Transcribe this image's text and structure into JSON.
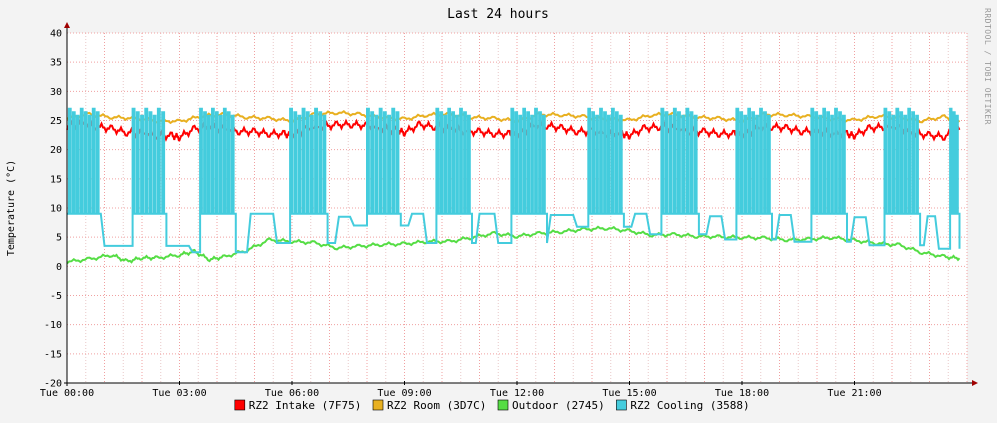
{
  "chart_data": {
    "type": "line",
    "title": "Last 24 hours",
    "ylabel": "Temperature (°C)",
    "watermark": "RRDTOOL / TOBI OETIKER",
    "ylim": [
      -20,
      40
    ],
    "xlim_hours": [
      0,
      24
    ],
    "yticks": [
      40,
      35,
      30,
      25,
      20,
      15,
      10,
      5,
      0,
      -5,
      -10,
      -15,
      -20
    ],
    "xticks": [
      {
        "h": 0,
        "label": "Tue 00:00"
      },
      {
        "h": 3,
        "label": "Tue 03:00"
      },
      {
        "h": 6,
        "label": "Tue 06:00"
      },
      {
        "h": 9,
        "label": "Tue 09:00"
      },
      {
        "h": 12,
        "label": "Tue 12:00"
      },
      {
        "h": 15,
        "label": "Tue 15:00"
      },
      {
        "h": 18,
        "label": "Tue 18:00"
      },
      {
        "h": 21,
        "label": "Tue 21:00"
      }
    ],
    "grid": true,
    "legend_position": "bottom",
    "series": [
      {
        "name": "RZ2 Intake (7F75)",
        "color": "#ff0000",
        "x": [
          0,
          0.4,
          0.8,
          1.2,
          1.6,
          2.0,
          2.4,
          2.8,
          3.0,
          3.4,
          3.8,
          4.2,
          4.6,
          5.0,
          5.4,
          5.8,
          6.0,
          6.4,
          6.8,
          7.2,
          7.6,
          8.0,
          8.4,
          8.8,
          9.0,
          9.4,
          9.8,
          10.2,
          10.6,
          11.0,
          11.4,
          11.8,
          12.0,
          12.4,
          12.8,
          13.2,
          13.6,
          14.0,
          14.4,
          14.8,
          15.0,
          15.4,
          15.8,
          16.2,
          16.6,
          17.0,
          17.4,
          17.8,
          18.0,
          18.4,
          18.8,
          19.2,
          19.6,
          20.0,
          20.4,
          20.8,
          21.0,
          21.4,
          21.8,
          22.2,
          22.6,
          23.0,
          23.4,
          23.8
        ],
        "y": [
          24,
          24.5,
          24,
          23.5,
          23,
          22.8,
          22.5,
          22.3,
          22.2,
          23.5,
          24,
          23.5,
          23.2,
          23,
          22.8,
          22.6,
          22.5,
          23.5,
          24,
          24.2,
          24.4,
          24,
          23.6,
          23.3,
          23,
          24.2,
          24,
          23.6,
          23.2,
          23,
          22.8,
          22.6,
          22.5,
          24,
          24.2,
          23.6,
          23.2,
          23,
          22.8,
          22.6,
          22.5,
          23.6,
          24,
          23.6,
          23.2,
          23,
          22.8,
          22.6,
          22.5,
          23.6,
          24,
          23.6,
          23.2,
          23,
          22.8,
          22.6,
          22.5,
          23.6,
          24,
          23.6,
          22.8,
          22.4,
          22.3,
          23.4
        ]
      },
      {
        "name": "RZ2 Room (3D7C)",
        "color": "#e8b020",
        "x": [
          0,
          0.6,
          1.2,
          1.8,
          2.4,
          3.0,
          3.6,
          4.2,
          4.8,
          5.4,
          6.0,
          6.6,
          7.2,
          7.8,
          8.4,
          9.0,
          9.6,
          10.2,
          10.8,
          11.4,
          12.0,
          12.6,
          13.2,
          13.8,
          14.4,
          15.0,
          15.6,
          16.2,
          16.8,
          17.4,
          18.0,
          18.6,
          19.2,
          19.8,
          20.4,
          21.0,
          21.6,
          22.2,
          22.8,
          23.4,
          23.8
        ],
        "y": [
          25.5,
          26,
          25.6,
          25.3,
          25,
          24.8,
          25.8,
          26,
          25.6,
          25.3,
          25,
          26,
          26.4,
          26,
          25.6,
          25.2,
          26,
          26,
          25.6,
          25.3,
          25,
          26,
          26,
          25.6,
          25.3,
          25,
          26,
          26,
          25.6,
          25.3,
          25,
          26,
          26,
          25.6,
          25.3,
          25,
          25.8,
          25.4,
          25,
          25.6,
          25
        ]
      },
      {
        "name": "Outdoor (2745)",
        "color": "#55dd44",
        "x": [
          0,
          0.6,
          1.2,
          1.6,
          2.0,
          2.4,
          3.0,
          3.4,
          3.8,
          4.2,
          4.8,
          5.4,
          6.0,
          6.6,
          7.2,
          7.8,
          8.4,
          9.0,
          9.6,
          10.2,
          10.8,
          11.4,
          12.0,
          12.6,
          13.2,
          13.8,
          14.4,
          15.0,
          15.6,
          16.2,
          16.8,
          17.4,
          18.0,
          18.6,
          19.2,
          19.8,
          20.4,
          21.0,
          21.6,
          22.2,
          22.8,
          23.4,
          23.8
        ],
        "y": [
          0.8,
          1.2,
          2.0,
          0.8,
          1.5,
          1.4,
          2.0,
          2.5,
          1.2,
          1.6,
          2.8,
          4.5,
          4.3,
          4.0,
          3.2,
          3.4,
          3.8,
          3.8,
          4.3,
          4.2,
          5.0,
          5.6,
          5.2,
          5.6,
          6.0,
          6.3,
          6.6,
          6.0,
          5.4,
          5.4,
          5.2,
          5.0,
          5.0,
          4.8,
          4.6,
          4.6,
          5.0,
          4.4,
          4.0,
          3.6,
          2.4,
          1.6,
          1.4
        ]
      },
      {
        "name": "RZ2 Cooling (3588)",
        "color": "#44ccdd",
        "on_segments": [
          [
            0.05,
            0.9
          ],
          [
            1.75,
            2.65
          ],
          [
            3.55,
            4.5
          ],
          [
            5.95,
            6.95
          ],
          [
            8.0,
            8.9
          ],
          [
            9.85,
            10.8
          ],
          [
            11.85,
            12.8
          ],
          [
            13.9,
            14.85
          ],
          [
            15.85,
            16.85
          ],
          [
            17.85,
            18.8
          ],
          [
            19.85,
            20.8
          ],
          [
            21.8,
            22.75
          ],
          [
            23.55,
            23.8
          ]
        ],
        "off_level": [
          [
            0,
            9
          ],
          [
            1.0,
            3.5
          ],
          [
            3.3,
            2.4
          ],
          [
            4.8,
            9.0
          ],
          [
            5.5,
            4.0
          ],
          [
            7.2,
            8.5
          ],
          [
            7.6,
            7.0
          ],
          [
            9.2,
            9.0
          ],
          [
            9.5,
            4.0
          ],
          [
            11.0,
            9.0
          ],
          [
            11.4,
            4.0
          ],
          [
            12.9,
            8.8
          ],
          [
            13.5,
            6.8
          ],
          [
            15.1,
            9.0
          ],
          [
            15.5,
            5.5
          ],
          [
            17.1,
            8.6
          ],
          [
            17.5,
            4.6
          ],
          [
            19.0,
            8.8
          ],
          [
            19.4,
            4.2
          ],
          [
            21.0,
            8.4
          ],
          [
            21.4,
            3.6
          ],
          [
            22.9,
            8.6
          ],
          [
            23.2,
            3.0
          ]
        ],
        "peak": 27,
        "low_in_on": 9
      }
    ]
  }
}
